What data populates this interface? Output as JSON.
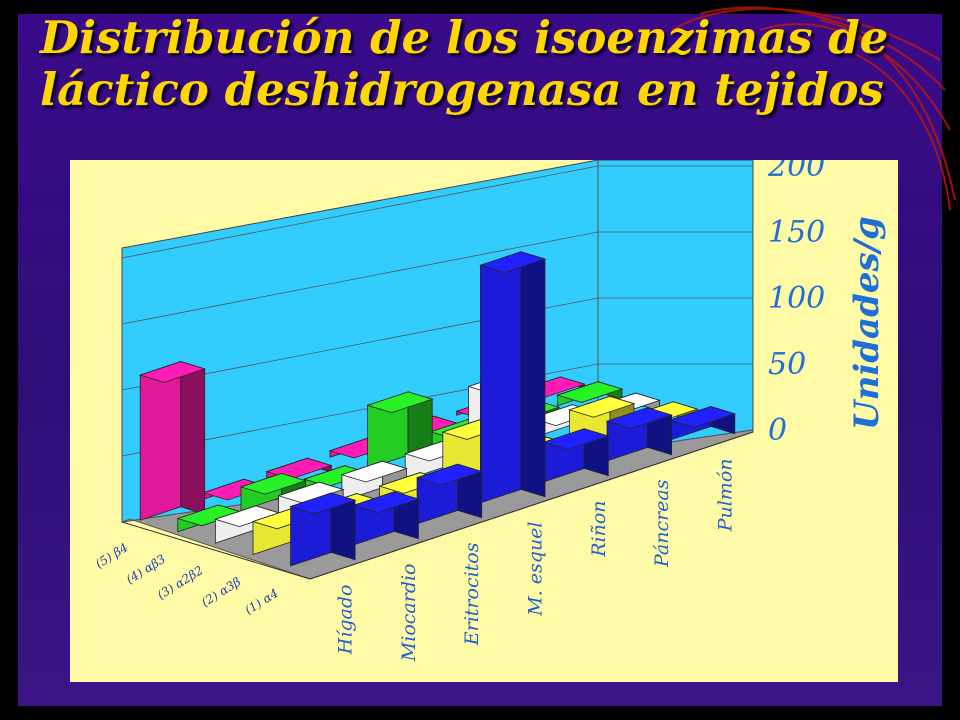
{
  "title": {
    "line1": "Distribución de los isoenzimas de",
    "line2": "láctico deshidrogenasa en tejidos"
  },
  "colors": {
    "background": "#33107e",
    "title": "#ffd700",
    "chart_panel": "#fffaa6",
    "back_wall": "#33ccff",
    "floor": "#9a9a9a",
    "axis_text": "#1f6fd8"
  },
  "chart_data": {
    "type": "bar",
    "subtype": "3d-bar",
    "title": "Distribución de los isoenzimas de láctico deshidrogenasa en tejidos",
    "ylabel": "Unidades/g",
    "xlabel": "",
    "ylim": [
      0,
      200
    ],
    "yticks": [
      0,
      50,
      100,
      150,
      200
    ],
    "grid": true,
    "categories": [
      "Hígado",
      "Miocardio",
      "Eritrocitos",
      "M. esquel",
      "Riñon",
      "Páncreas",
      "Pulmón"
    ],
    "series": [
      {
        "name": "(1) α4",
        "color": "#1c1cd8",
        "values": [
          45,
          30,
          35,
          180,
          30,
          30,
          15
        ]
      },
      {
        "name": "(2) α3β",
        "color": "#e8e833",
        "values": [
          25,
          20,
          20,
          45,
          15,
          30,
          10
        ]
      },
      {
        "name": "(3) α2β2",
        "color": "#eeeeee",
        "values": [
          18,
          20,
          20,
          20,
          55,
          15,
          8
        ]
      },
      {
        "name": "(4) αβ3",
        "color": "#22cc22",
        "values": [
          10,
          18,
          8,
          48,
          12,
          10,
          8
        ]
      },
      {
        "name": "(5) β4",
        "color": "#e0189a",
        "values": [
          110,
          5,
          5,
          5,
          5,
          3,
          3
        ]
      }
    ],
    "legend": "row labels along left depth axis"
  }
}
